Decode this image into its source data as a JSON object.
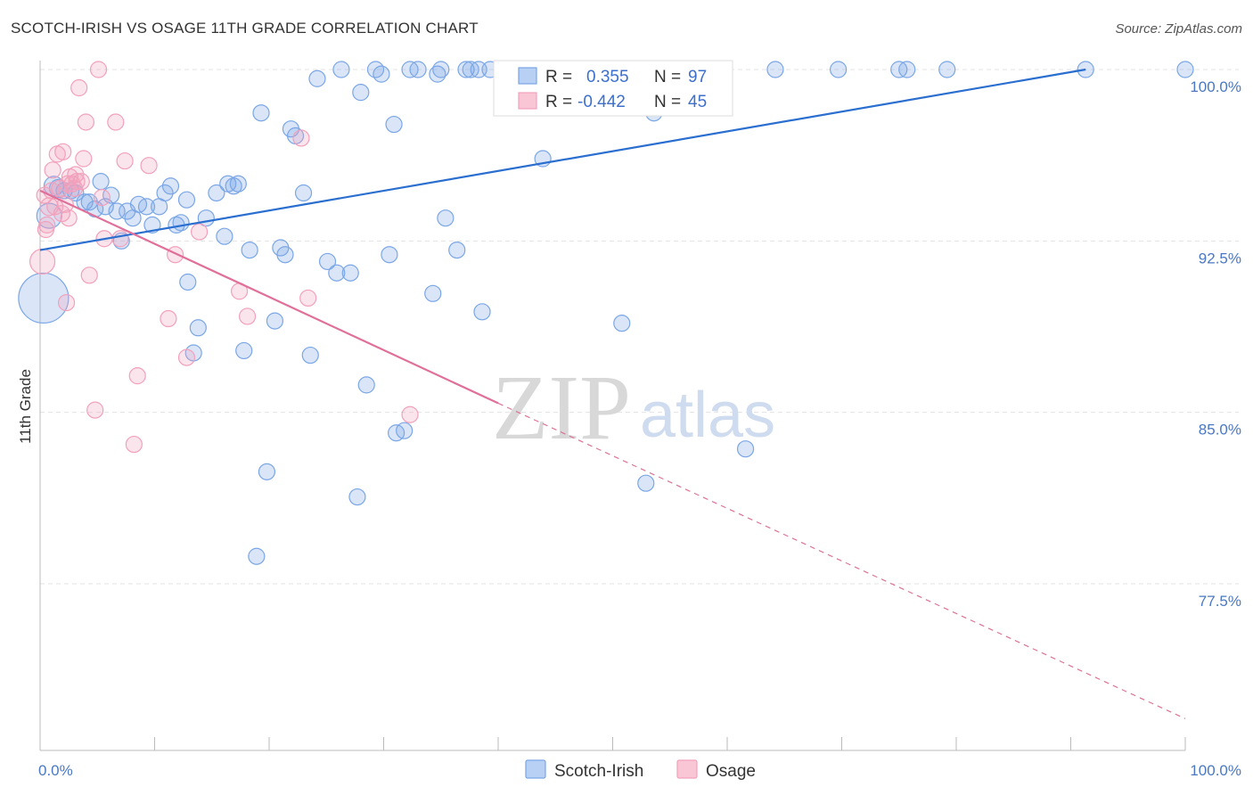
{
  "title": "SCOTCH-IRISH VS OSAGE 11TH GRADE CORRELATION CHART",
  "source": "Source: ZipAtlas.com",
  "watermark": {
    "zip": "ZIP",
    "atlas": "atlas"
  },
  "chart_data": {
    "type": "scatter",
    "xlabel": "",
    "ylabel": "11th Grade",
    "xlim": [
      0,
      100
    ],
    "ylim": [
      70.6,
      100.8
    ],
    "x_ticks": [
      {
        "value": 0,
        "label": "0.0%"
      },
      {
        "value": 100,
        "label": "100.0%"
      }
    ],
    "y_ticks": [
      {
        "value": 100,
        "label": "100.0%"
      },
      {
        "value": 92.5,
        "label": "92.5%"
      },
      {
        "value": 85,
        "label": "85.0%"
      },
      {
        "value": 77.5,
        "label": "77.5%"
      }
    ],
    "grid": true,
    "legend": {
      "placement": "top-center",
      "entries": [
        {
          "r_label": "R =",
          "r_value": "0.355",
          "n_label": "N =",
          "n_value": "97"
        },
        {
          "r_label": "R =",
          "r_value": "-0.442",
          "n_label": "N =",
          "n_value": "45"
        }
      ]
    },
    "series": [
      {
        "name": "Scotch-Irish",
        "color": "#7aa6e6",
        "trend_color": "#2a6fd0",
        "trend": {
          "x0": 0,
          "y0": 92.1,
          "x1": 91.3,
          "y1": 100.0
        },
        "points": [
          [
            0.3,
            90.0,
            28
          ],
          [
            0.8,
            93.6,
            14
          ],
          [
            1.2,
            94.9,
            11
          ],
          [
            1.6,
            94.8,
            10
          ],
          [
            2.1,
            94.7,
            9
          ],
          [
            2.7,
            94.7,
            9
          ],
          [
            3.1,
            94.6,
            9
          ],
          [
            3.9,
            94.2,
            9
          ],
          [
            4.3,
            94.2,
            9
          ],
          [
            4.8,
            93.9,
            9
          ],
          [
            5.3,
            95.1,
            9
          ],
          [
            5.7,
            94.0,
            9
          ],
          [
            6.2,
            94.5,
            9
          ],
          [
            6.7,
            93.8,
            9
          ],
          [
            7.1,
            92.5,
            9
          ],
          [
            7.6,
            93.8,
            9
          ],
          [
            8.1,
            93.5,
            9
          ],
          [
            8.6,
            94.1,
            9
          ],
          [
            9.3,
            94.0,
            9
          ],
          [
            9.8,
            93.2,
            9
          ],
          [
            10.4,
            94.0,
            9
          ],
          [
            10.9,
            94.6,
            9
          ],
          [
            11.4,
            94.9,
            9
          ],
          [
            11.9,
            93.2,
            9
          ],
          [
            12.3,
            93.3,
            9
          ],
          [
            12.8,
            94.3,
            9
          ],
          [
            12.9,
            90.7,
            9
          ],
          [
            13.4,
            87.6,
            9
          ],
          [
            13.8,
            88.7,
            9
          ],
          [
            14.5,
            93.5,
            9
          ],
          [
            15.4,
            94.6,
            9
          ],
          [
            16.1,
            92.7,
            9
          ],
          [
            16.4,
            95.0,
            9
          ],
          [
            16.9,
            94.9,
            9
          ],
          [
            17.3,
            95.0,
            9
          ],
          [
            17.8,
            87.7,
            9
          ],
          [
            18.3,
            92.1,
            9
          ],
          [
            18.9,
            78.7,
            9
          ],
          [
            19.3,
            98.1,
            9
          ],
          [
            19.8,
            82.4,
            9
          ],
          [
            20.5,
            89.0,
            9
          ],
          [
            21.0,
            92.2,
            9
          ],
          [
            21.4,
            91.9,
            9
          ],
          [
            21.9,
            97.4,
            9
          ],
          [
            22.3,
            97.1,
            9
          ],
          [
            23.0,
            94.6,
            9
          ],
          [
            23.6,
            87.5,
            9
          ],
          [
            24.2,
            99.6,
            9
          ],
          [
            25.1,
            91.6,
            9
          ],
          [
            25.9,
            91.1,
            9
          ],
          [
            26.3,
            100.0,
            9
          ],
          [
            27.1,
            91.1,
            9
          ],
          [
            27.7,
            81.3,
            9
          ],
          [
            28.0,
            99.0,
            9
          ],
          [
            28.5,
            86.2,
            9
          ],
          [
            29.3,
            100.0,
            9
          ],
          [
            29.8,
            99.8,
            9
          ],
          [
            30.5,
            91.9,
            9
          ],
          [
            30.9,
            97.6,
            9
          ],
          [
            31.1,
            84.1,
            9
          ],
          [
            31.8,
            84.2,
            9
          ],
          [
            32.3,
            100.0,
            9
          ],
          [
            33.0,
            100.0,
            9
          ],
          [
            34.3,
            90.2,
            9
          ],
          [
            34.7,
            99.8,
            9
          ],
          [
            35.0,
            100.0,
            9
          ],
          [
            35.4,
            93.5,
            9
          ],
          [
            36.4,
            92.1,
            9
          ],
          [
            37.2,
            100.0,
            9
          ],
          [
            37.6,
            100.0,
            9
          ],
          [
            38.3,
            100.0,
            9
          ],
          [
            38.6,
            89.4,
            9
          ],
          [
            39.3,
            100.0,
            9
          ],
          [
            40.5,
            100.0,
            9
          ],
          [
            41.2,
            100.0,
            9
          ],
          [
            42.4,
            100.0,
            9
          ],
          [
            43.3,
            100.0,
            9
          ],
          [
            43.9,
            96.1,
            9
          ],
          [
            45.1,
            100.0,
            9
          ],
          [
            46.3,
            100.0,
            9
          ],
          [
            47.5,
            100.0,
            9
          ],
          [
            48.5,
            100.0,
            9
          ],
          [
            49.7,
            100.0,
            9
          ],
          [
            50.6,
            100.0,
            9
          ],
          [
            50.8,
            88.9,
            9
          ],
          [
            52.0,
            100.0,
            9
          ],
          [
            52.9,
            81.9,
            9
          ],
          [
            53.6,
            98.1,
            9
          ],
          [
            55.0,
            100.0,
            9
          ],
          [
            57.1,
            100.0,
            9
          ],
          [
            61.6,
            83.4,
            9
          ],
          [
            64.2,
            100.0,
            9
          ],
          [
            69.7,
            100.0,
            9
          ],
          [
            75.0,
            100.0,
            9
          ],
          [
            75.7,
            100.0,
            9
          ],
          [
            79.2,
            100.0,
            9
          ],
          [
            91.3,
            100.0,
            9
          ],
          [
            100.0,
            100.0,
            9
          ]
        ]
      },
      {
        "name": "Osage",
        "color": "#f2a0bb",
        "trend_color": "#e0709a",
        "trend": {
          "x0": 0,
          "y0": 94.7,
          "x1": 40.0,
          "y1": 85.4
        },
        "trend_dashed": {
          "x0": 40.0,
          "y0": 85.4,
          "x1": 100.0,
          "y1": 71.6
        },
        "points": [
          [
            0.2,
            91.6,
            14
          ],
          [
            0.5,
            93.0,
            9
          ],
          [
            0.8,
            94.0,
            10
          ],
          [
            1.1,
            95.6,
            9
          ],
          [
            1.3,
            94.0,
            9
          ],
          [
            1.5,
            96.3,
            9
          ],
          [
            1.7,
            94.8,
            9
          ],
          [
            2.0,
            96.4,
            9
          ],
          [
            2.2,
            94.1,
            9
          ],
          [
            2.3,
            89.8,
            9
          ],
          [
            2.5,
            93.5,
            9
          ],
          [
            2.6,
            95.3,
            9
          ],
          [
            2.8,
            95.0,
            9
          ],
          [
            3.0,
            94.8,
            9
          ],
          [
            3.2,
            95.1,
            9
          ],
          [
            3.4,
            99.2,
            9
          ],
          [
            3.6,
            95.1,
            9
          ],
          [
            3.8,
            96.1,
            9
          ],
          [
            4.0,
            97.7,
            9
          ],
          [
            4.3,
            91.0,
            9
          ],
          [
            4.8,
            85.1,
            9
          ],
          [
            5.1,
            100.0,
            9
          ],
          [
            5.4,
            94.4,
            9
          ],
          [
            5.6,
            92.6,
            9
          ],
          [
            6.6,
            97.7,
            9
          ],
          [
            7.0,
            92.6,
            9
          ],
          [
            7.4,
            96.0,
            9
          ],
          [
            8.2,
            83.6,
            9
          ],
          [
            8.5,
            86.6,
            9
          ],
          [
            9.5,
            95.8,
            9
          ],
          [
            11.2,
            89.1,
            9
          ],
          [
            11.8,
            91.9,
            9
          ],
          [
            12.8,
            87.4,
            9
          ],
          [
            13.9,
            92.9,
            9
          ],
          [
            17.4,
            90.3,
            9
          ],
          [
            18.1,
            89.2,
            9
          ],
          [
            22.8,
            97.0,
            9
          ],
          [
            23.4,
            90.0,
            9
          ],
          [
            32.3,
            84.9,
            9
          ],
          [
            0.4,
            94.5,
            9
          ],
          [
            1.9,
            93.7,
            9
          ],
          [
            3.1,
            95.4,
            9
          ],
          [
            1.0,
            94.7,
            9
          ],
          [
            2.4,
            95.0,
            9
          ],
          [
            0.6,
            93.2,
            9
          ]
        ]
      }
    ]
  }
}
